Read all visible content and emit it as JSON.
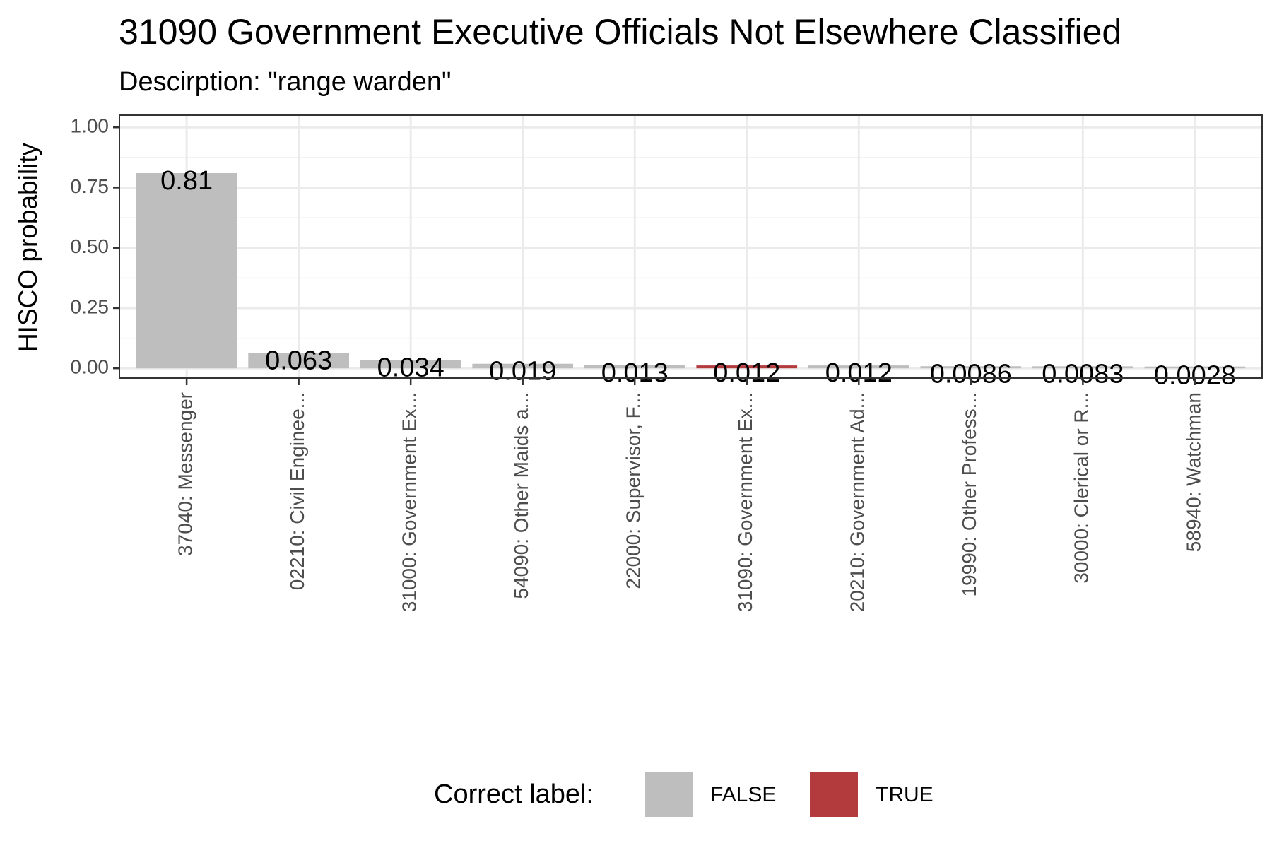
{
  "chart_data": {
    "type": "bar",
    "title": "31090 Government Executive Officials Not Elsewhere Classified",
    "subtitle": "Descirption: \"range warden\"",
    "ylabel": "HISCO probability",
    "xlabel": "",
    "ylim": [
      0,
      1.05
    ],
    "yticks": [
      "0.00",
      "0.25",
      "0.50",
      "0.75",
      "1.00"
    ],
    "grid": true,
    "categories": [
      "37040: Messenger",
      "02210: Civil Enginee...",
      "31000: Government Ex...",
      "54090: Other Maids a...",
      "22000: Supervisor, F...",
      "31090: Government Ex...",
      "20210: Government Ad...",
      "19990: Other Profess...",
      "30000: Clerical or R...",
      "58940: Watchman"
    ],
    "values": [
      0.81,
      0.063,
      0.034,
      0.019,
      0.013,
      0.012,
      0.012,
      0.0086,
      0.0083,
      0.0028
    ],
    "value_labels": [
      "0.81",
      "0.063",
      "0.034",
      "0.019",
      "0.013",
      "0.012",
      "0.012",
      "0.0086",
      "0.0083",
      "0.0028"
    ],
    "correct": [
      false,
      false,
      false,
      false,
      false,
      true,
      false,
      false,
      false,
      false
    ],
    "legend": {
      "title": "Correct label:",
      "placement": "bottom",
      "entries": [
        {
          "label": "FALSE",
          "color": "#bebebe"
        },
        {
          "label": "TRUE",
          "color": "#b33b3e"
        }
      ]
    }
  }
}
